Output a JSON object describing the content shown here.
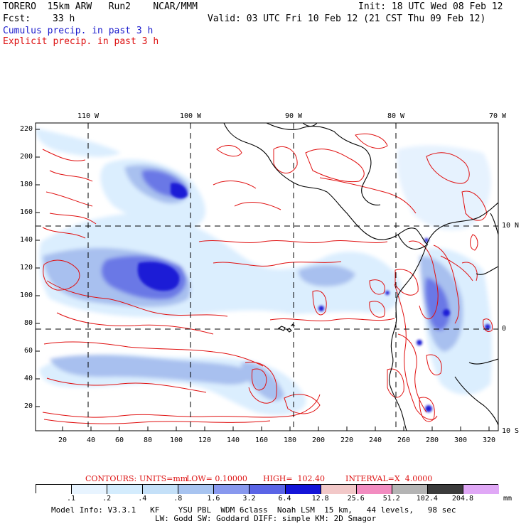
{
  "header": {
    "model": "TORERO  15km ARW   Run2    NCAR/MMM",
    "init": "Init: 18 UTC Wed 08 Feb 12",
    "fcst_label": "Fcst:",
    "fcst_value": "33 h",
    "valid": "Valid: 03 UTC Fri 10 Feb 12 (21 CST Thu 09 Feb 12)",
    "field1": "Cumulus precip. in past 3 h",
    "field2": "Explicit precip. in past 3 h"
  },
  "map": {
    "lon_labels": [
      "110 W",
      "100 W",
      "90 W",
      "80 W",
      "70 W"
    ],
    "lat_labels": [
      "10 N",
      "0",
      "10 S"
    ],
    "y_ticks": [
      "220",
      "200",
      "180",
      "160",
      "140",
      "120",
      "100",
      "80",
      "60",
      "40",
      "20"
    ],
    "x_ticks": [
      "20",
      "40",
      "60",
      "80",
      "100",
      "120",
      "140",
      "160",
      "180",
      "200",
      "220",
      "240",
      "260",
      "280",
      "300",
      "320"
    ],
    "colors": {
      "explicit_contour": "#e01010",
      "coast": "#000000",
      "grid": "#000000"
    }
  },
  "contour_info": {
    "label": "CONTOURS:",
    "units": "UNITS=mm",
    "low": "LOW= 0.10000",
    "high": "HIGH=  102.40",
    "interval": "INTERVAL=X  4.0000"
  },
  "legend": {
    "values": [
      ".1",
      ".2",
      ".4",
      ".8",
      "1.6",
      "3.2",
      "6.4",
      "12.8",
      "25.6",
      "51.2",
      "102.4",
      "204.8"
    ],
    "unit": "mm",
    "colors": [
      "#ffffff",
      "#e8f4ff",
      "#d4ecfd",
      "#c4e0f8",
      "#a8c4f0",
      "#8898ee",
      "#5a64e6",
      "#1414d8",
      "#f2c8c8",
      "#f28cc0",
      "#b4b4b4",
      "#3c3c3c",
      "#e0a8f6"
    ]
  },
  "footer": {
    "line1": "Model Info: V3.3.1   KF    YSU PBL  WDM 6class  Noah LSM  15 km,   44 levels,   98 sec",
    "line2": "LW: Godd SW: Goddard DIFF: simple KM: 2D Smagor"
  }
}
